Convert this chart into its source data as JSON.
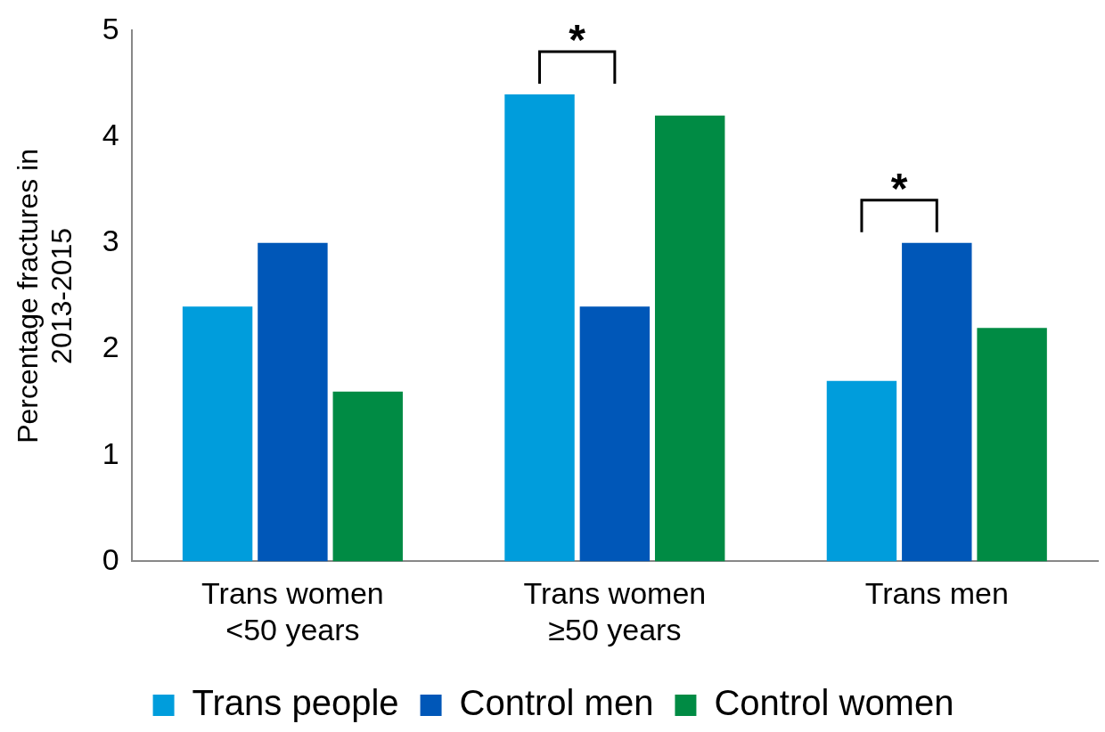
{
  "chart_data": {
    "type": "bar",
    "ylabel": "Percentage fractures in\n2013-2015",
    "categories": [
      "Trans women\n<50 years",
      "Trans women\n≥50 years",
      "Trans men"
    ],
    "series": [
      {
        "name": "Trans people",
        "color": "#009ddc",
        "values": [
          2.4,
          4.4,
          1.7
        ]
      },
      {
        "name": "Control men",
        "color": "#0057b8",
        "values": [
          3.0,
          2.4,
          3.0
        ]
      },
      {
        "name": "Control women",
        "color": "#008b44",
        "values": [
          1.6,
          4.2,
          2.2
        ]
      }
    ],
    "ylim": [
      0,
      5
    ],
    "yticks": [
      0,
      1,
      2,
      3,
      4,
      5
    ],
    "grid": false,
    "legend": "bottom",
    "annotations": [
      "*",
      "*"
    ]
  }
}
